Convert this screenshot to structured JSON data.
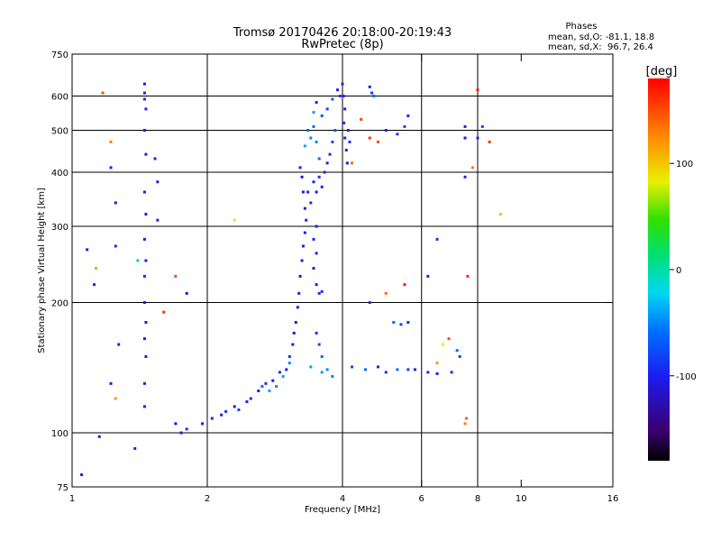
{
  "chart_data": {
    "type": "scatter",
    "title": "Tromsø 20170426 20:18:00-20:19:43",
    "subtitle": "RwPretec (8p)",
    "xlabel": "Frequency [MHz]",
    "ylabel": "Stationary phase Virtual Height [km]",
    "x_scale": "log",
    "y_scale": "log",
    "xlim": [
      1,
      16
    ],
    "ylim": [
      75,
      750
    ],
    "x_ticks": [
      1,
      2,
      4,
      6,
      8,
      10,
      16
    ],
    "x_tick_labels": [
      "1",
      "2",
      "4",
      "6",
      "8",
      "10",
      "16"
    ],
    "x_gridlines": [
      2,
      4,
      6,
      8
    ],
    "y_ticks": [
      75,
      100,
      200,
      300,
      400,
      500,
      600,
      750
    ],
    "y_tick_labels": [
      "75",
      "100",
      "200",
      "300",
      "400",
      "500",
      "600",
      "750"
    ],
    "y_gridlines": [
      100,
      200,
      300,
      400,
      500,
      600
    ],
    "phase_legend": {
      "title": "Phases",
      "line1": "mean, sd,O: -81.1, 18.8",
      "line2": "mean, sd,X:  96.7, 26.4"
    },
    "colorbar": {
      "label": "[deg]",
      "range": [
        -180,
        180
      ],
      "tick_values": [
        -100,
        0,
        100
      ],
      "tick_labels": [
        "-100",
        "0",
        "100"
      ]
    },
    "series": [
      {
        "name": "echo traces (phase color-coded)",
        "points": [
          [
            1.45,
            640,
            -110
          ],
          [
            1.45,
            610,
            -100
          ],
          [
            1.45,
            590,
            -95
          ],
          [
            1.46,
            560,
            -100
          ],
          [
            1.45,
            500,
            -110
          ],
          [
            1.46,
            440,
            -100
          ],
          [
            1.45,
            360,
            -105
          ],
          [
            1.46,
            320,
            -100
          ],
          [
            1.45,
            280,
            -110
          ],
          [
            1.46,
            250,
            -100
          ],
          [
            1.45,
            230,
            -95
          ],
          [
            1.45,
            200,
            -110
          ],
          [
            1.46,
            180,
            -100
          ],
          [
            1.45,
            165,
            -105
          ],
          [
            1.46,
            150,
            -100
          ],
          [
            1.45,
            130,
            -110
          ],
          [
            1.45,
            115,
            -100
          ],
          [
            1.53,
            430,
            -100
          ],
          [
            1.55,
            380,
            -105
          ],
          [
            1.55,
            310,
            -100
          ],
          [
            1.22,
            410,
            -100
          ],
          [
            1.25,
            340,
            -105
          ],
          [
            1.25,
            270,
            -95
          ],
          [
            1.27,
            160,
            -100
          ],
          [
            1.22,
            130,
            -110
          ],
          [
            1.08,
            265,
            -100
          ],
          [
            1.12,
            220,
            -95
          ],
          [
            1.15,
            98,
            -110
          ],
          [
            1.05,
            80,
            -100
          ],
          [
            1.38,
            92,
            -100
          ],
          [
            1.8,
            210,
            -110
          ],
          [
            1.17,
            610,
            150
          ],
          [
            1.22,
            470,
            130
          ],
          [
            1.6,
            190,
            160
          ],
          [
            1.7,
            230,
            150
          ],
          [
            1.25,
            120,
            120
          ],
          [
            1.13,
            240,
            60
          ],
          [
            1.4,
            250,
            20
          ],
          [
            2.3,
            310,
            80
          ],
          [
            1.7,
            105,
            -100
          ],
          [
            1.75,
            100,
            -110
          ],
          [
            1.8,
            102,
            -90
          ],
          [
            1.95,
            105,
            -100
          ],
          [
            2.05,
            108,
            -95
          ],
          [
            2.15,
            110,
            -100
          ],
          [
            2.2,
            112,
            -90
          ],
          [
            2.3,
            115,
            -100
          ],
          [
            2.35,
            113,
            -80
          ],
          [
            2.45,
            118,
            -95
          ],
          [
            2.5,
            120,
            -90
          ],
          [
            2.6,
            125,
            -100
          ],
          [
            2.65,
            128,
            -60
          ],
          [
            2.7,
            130,
            -90
          ],
          [
            2.75,
            125,
            -40
          ],
          [
            2.8,
            132,
            -100
          ],
          [
            2.85,
            128,
            -50
          ],
          [
            2.9,
            138,
            -90
          ],
          [
            2.95,
            135,
            -40
          ],
          [
            3.0,
            140,
            -100
          ],
          [
            3.05,
            150,
            -90
          ],
          [
            3.05,
            145,
            -50
          ],
          [
            3.1,
            160,
            -100
          ],
          [
            3.12,
            170,
            -110
          ],
          [
            3.15,
            180,
            -100
          ],
          [
            3.18,
            195,
            -105
          ],
          [
            3.2,
            210,
            -100
          ],
          [
            3.22,
            230,
            -110
          ],
          [
            3.25,
            250,
            -100
          ],
          [
            3.27,
            270,
            -105
          ],
          [
            3.3,
            290,
            -100
          ],
          [
            3.32,
            310,
            -95
          ],
          [
            3.3,
            330,
            -100
          ],
          [
            3.27,
            360,
            -105
          ],
          [
            3.25,
            390,
            -110
          ],
          [
            3.22,
            410,
            -100
          ],
          [
            3.35,
            360,
            -100
          ],
          [
            3.4,
            340,
            -95
          ],
          [
            3.45,
            380,
            -100
          ],
          [
            3.5,
            360,
            -105
          ],
          [
            3.55,
            390,
            -90
          ],
          [
            3.6,
            370,
            -100
          ],
          [
            3.65,
            400,
            -95
          ],
          [
            3.7,
            420,
            -100
          ],
          [
            3.75,
            440,
            -90
          ],
          [
            3.8,
            470,
            -80
          ],
          [
            3.85,
            500,
            -70
          ],
          [
            3.55,
            430,
            -60
          ],
          [
            3.5,
            470,
            -50
          ],
          [
            3.45,
            510,
            -60
          ],
          [
            3.6,
            540,
            -70
          ],
          [
            3.7,
            560,
            -80
          ],
          [
            3.8,
            590,
            -70
          ],
          [
            3.9,
            620,
            -100
          ],
          [
            3.95,
            600,
            -90
          ],
          [
            3.5,
            580,
            -100
          ],
          [
            3.45,
            550,
            -40
          ],
          [
            3.4,
            480,
            -50
          ],
          [
            3.35,
            500,
            -60
          ],
          [
            3.3,
            460,
            -40
          ],
          [
            3.5,
            300,
            -100
          ],
          [
            3.45,
            280,
            -95
          ],
          [
            3.5,
            260,
            -100
          ],
          [
            3.45,
            240,
            -105
          ],
          [
            3.5,
            220,
            -100
          ],
          [
            3.55,
            210,
            -95
          ],
          [
            3.6,
            212,
            -90
          ],
          [
            3.5,
            170,
            -90
          ],
          [
            3.55,
            160,
            -80
          ],
          [
            3.6,
            150,
            -60
          ],
          [
            3.7,
            140,
            -50
          ],
          [
            3.8,
            135,
            -50
          ],
          [
            3.6,
            138,
            -40
          ],
          [
            3.4,
            142,
            -40
          ],
          [
            4.0,
            640,
            -100
          ],
          [
            4.02,
            600,
            -110
          ],
          [
            4.05,
            560,
            -100
          ],
          [
            4.03,
            520,
            -95
          ],
          [
            4.05,
            480,
            -100
          ],
          [
            4.08,
            450,
            -100
          ],
          [
            4.1,
            420,
            -105
          ],
          [
            4.12,
            500,
            -100
          ],
          [
            4.15,
            470,
            -90
          ],
          [
            4.6,
            630,
            -100
          ],
          [
            4.65,
            610,
            -90
          ],
          [
            4.7,
            600,
            -60
          ],
          [
            4.6,
            480,
            160
          ],
          [
            4.8,
            470,
            150
          ],
          [
            5.0,
            500,
            -100
          ],
          [
            5.3,
            490,
            -90
          ],
          [
            5.5,
            510,
            -80
          ],
          [
            5.6,
            540,
            -100
          ],
          [
            4.4,
            530,
            150
          ],
          [
            4.2,
            420,
            140
          ],
          [
            4.2,
            142,
            -80
          ],
          [
            4.5,
            140,
            -60
          ],
          [
            4.8,
            142,
            -100
          ],
          [
            5.0,
            138,
            -90
          ],
          [
            5.3,
            140,
            -60
          ],
          [
            5.6,
            140,
            -80
          ],
          [
            5.8,
            140,
            -100
          ],
          [
            6.2,
            138,
            -90
          ],
          [
            6.5,
            137,
            -100
          ],
          [
            7.0,
            138,
            -90
          ],
          [
            5.2,
            180,
            -60
          ],
          [
            5.4,
            178,
            -80
          ],
          [
            5.6,
            180,
            -90
          ],
          [
            4.6,
            200,
            -90
          ],
          [
            5.0,
            210,
            140
          ],
          [
            5.5,
            220,
            170
          ],
          [
            6.2,
            230,
            -100
          ],
          [
            6.5,
            280,
            -90
          ],
          [
            6.7,
            160,
            80
          ],
          [
            6.9,
            165,
            150
          ],
          [
            7.2,
            155,
            -60
          ],
          [
            7.3,
            150,
            -80
          ],
          [
            6.5,
            145,
            120
          ],
          [
            7.5,
            510,
            -100
          ],
          [
            7.5,
            480,
            -110
          ],
          [
            8.0,
            620,
            170
          ],
          [
            8.0,
            480,
            -100
          ],
          [
            8.2,
            510,
            -80
          ],
          [
            8.5,
            470,
            160
          ],
          [
            7.5,
            390,
            -100
          ],
          [
            7.8,
            410,
            130
          ],
          [
            9.0,
            320,
            70
          ],
          [
            7.6,
            230,
            165
          ],
          [
            7.5,
            105,
            130
          ],
          [
            7.55,
            108,
            140
          ]
        ]
      }
    ]
  }
}
